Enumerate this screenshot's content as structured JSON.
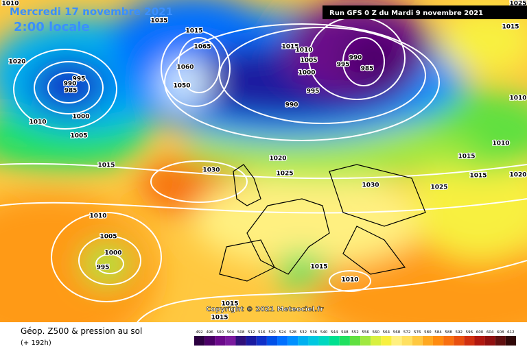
{
  "header": {
    "date": "Mercredi 17 novembre 2021",
    "time": "2:00 locale",
    "run": "Run GFS 0 Z du Mardi 9 novembre 2021"
  },
  "map": {
    "copyright": "Copyright © 2021 Meteociel.fr",
    "isobar_labels": [
      "1010",
      "1035",
      "1015",
      "1065",
      "1060",
      "1050",
      "1020",
      "995",
      "990",
      "985",
      "1010",
      "1000",
      "1005",
      "1015",
      "1030",
      "1015",
      "1010",
      "1005",
      "1000",
      "995",
      "990",
      "985",
      "995",
      "990",
      "1020",
      "1025",
      "1030",
      "1025",
      "1015",
      "1015",
      "1010",
      "1010",
      "1015",
      "1025",
      "1020",
      "1010",
      "1005",
      "1000",
      "995",
      "1015",
      "1010",
      "1015",
      "1015"
    ]
  },
  "footer": {
    "title": "Géop. Z500 & pression au sol",
    "lead": "(+ 192h)"
  },
  "scale": {
    "labels": [
      492,
      496,
      500,
      504,
      508,
      512,
      516,
      520,
      524,
      528,
      532,
      536,
      540,
      544,
      548,
      552,
      556,
      560,
      564,
      568,
      572,
      576,
      580,
      584,
      588,
      592,
      596,
      600,
      604,
      608,
      612
    ],
    "colors": [
      "#2b0040",
      "#4a0066",
      "#6b0a8a",
      "#7a1a9e",
      "#30107a",
      "#1a1aa0",
      "#1030c8",
      "#0050e8",
      "#0070ff",
      "#0090ff",
      "#00b0f0",
      "#00c8e0",
      "#00d8c0",
      "#00e090",
      "#20e060",
      "#60e040",
      "#a0e840",
      "#d8f040",
      "#f8f040",
      "#fff080",
      "#ffe060",
      "#ffc840",
      "#ffa820",
      "#ff8c10",
      "#f87010",
      "#e85010",
      "#d03010",
      "#b01810",
      "#901010",
      "#601010",
      "#300808"
    ]
  }
}
